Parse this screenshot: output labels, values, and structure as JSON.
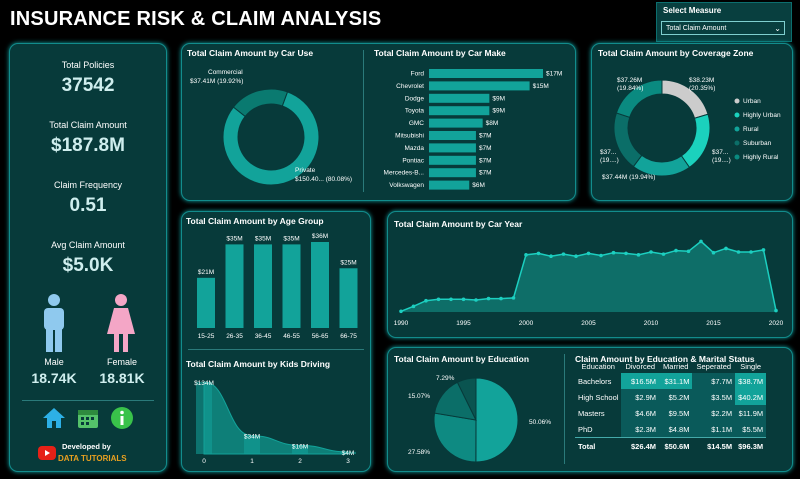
{
  "title": "INSURANCE RISK & CLAIM ANALYSIS",
  "measure": {
    "label": "Select Measure",
    "value": "Total Claim Amount"
  },
  "kpis": {
    "total_policies": {
      "label": "Total Policies",
      "value": "37542"
    },
    "total_claim": {
      "label": "Total Claim Amount",
      "value": "$187.8M"
    },
    "frequency": {
      "label": "Claim Frequency",
      "value": "0.51"
    },
    "avg_claim": {
      "label": "Avg Claim Amount",
      "value": "$5.0K"
    }
  },
  "gender": {
    "male_label": "Male",
    "male_value": "18.74K",
    "female_label": "Female",
    "female_value": "18.81K"
  },
  "developer": {
    "line1": "Developed by",
    "line2": "DATA TUTORIALS"
  },
  "colors": {
    "accent": "#12a39a",
    "panel": "#073a3a",
    "border": "#128c8c"
  },
  "car_use": {
    "title": "Total Claim Amount by Car Use",
    "commercial": "Commercial",
    "commercial_val": "$37.41M (19.92%)",
    "private": "Private",
    "private_val": "$150.40... (80.08%)"
  },
  "car_make": {
    "title": "Total Claim Amount by Car Make"
  },
  "coverage": {
    "title": "Total Claim Amount by Coverage Zone",
    "labels": [
      "$37.26M",
      "(19.84%)",
      "$38.23M",
      "(20.35%)",
      "$37...",
      "(19....)",
      "$37...",
      "(19....)",
      "$37.44M (19.94%)"
    ],
    "legend": [
      "Urban",
      "Highly Urban",
      "Rural",
      "Suburban",
      "Highly Rural"
    ]
  },
  "age": {
    "title": "Total Claim Amount by Age Group"
  },
  "kids": {
    "title": "Total Claim Amount by Kids Driving"
  },
  "year": {
    "title": "Total Claim Amount by Car Year"
  },
  "education": {
    "title": "Total Claim Amount by Education",
    "labels": [
      "7.29%",
      "15.07%",
      "27.58%",
      "50.06%"
    ]
  },
  "marital": {
    "title": "Claim Amount by Education & Marital Status",
    "headers": [
      "Education",
      "Divorced",
      "Married",
      "Seperated",
      "Single"
    ],
    "rows": [
      [
        "Bachelors",
        "$16.5M",
        "$31.1M",
        "$7.7M",
        "$38.7M"
      ],
      [
        "High School",
        "$2.9M",
        "$5.2M",
        "$3.5M",
        "$40.2M"
      ],
      [
        "Masters",
        "$4.6M",
        "$9.5M",
        "$2.2M",
        "$11.9M"
      ],
      [
        "PhD",
        "$2.3M",
        "$4.8M",
        "$1.1M",
        "$5.5M"
      ]
    ],
    "total": [
      "Total",
      "$26.4M",
      "$50.6M",
      "$14.5M",
      "$96.3M"
    ]
  },
  "chart_data": [
    {
      "type": "pie",
      "title": "Total Claim Amount by Car Use",
      "categories": [
        "Commercial",
        "Private"
      ],
      "values": [
        37.41,
        150.4
      ],
      "percent": [
        19.92,
        80.08
      ],
      "unit": "$M"
    },
    {
      "type": "bar",
      "title": "Total Claim Amount by Car Make",
      "categories": [
        "Ford",
        "Chevrolet",
        "Dodge",
        "Toyota",
        "GMC",
        "Mitsubishi",
        "Mazda",
        "Pontiac",
        "Mercedes-B...",
        "Volkswagen"
      ],
      "values": [
        17,
        15,
        9,
        9,
        8,
        7,
        7,
        7,
        7,
        6
      ],
      "labels": [
        "$17M",
        "$15M",
        "$9M",
        "$9M",
        "$8M",
        "$7M",
        "$7M",
        "$7M",
        "$7M",
        "$6M"
      ]
    },
    {
      "type": "pie",
      "title": "Total Claim Amount by Coverage Zone",
      "categories": [
        "Urban",
        "Highly Urban",
        "Rural",
        "Suburban",
        "Highly Rural"
      ],
      "values": [
        38.23,
        37.44,
        37.26,
        37.4,
        37.4
      ],
      "colors": [
        "#cccccc",
        "#1bd1bd",
        "#12a39a",
        "#0b6e68",
        "#0a8a80"
      ]
    },
    {
      "type": "bar",
      "title": "Total Claim Amount by Age Group",
      "categories": [
        "15-25",
        "26-35",
        "36-45",
        "46-55",
        "56-65",
        "66-75"
      ],
      "values": [
        21,
        35,
        35,
        35,
        36,
        25
      ],
      "labels": [
        "$21M",
        "$35M",
        "$35M",
        "$35M",
        "$36M",
        "$25M"
      ]
    },
    {
      "type": "area",
      "title": "Total Claim Amount by Kids Driving",
      "x": [
        0,
        1,
        2,
        3
      ],
      "values": [
        134,
        34,
        16,
        4
      ],
      "labels": [
        "$134M",
        "$34M",
        "$16M",
        "$4M"
      ]
    },
    {
      "type": "area",
      "title": "Total Claim Amount by Car Year",
      "x": [
        1990,
        1991,
        1992,
        1993,
        1994,
        1995,
        1996,
        1997,
        1998,
        1999,
        2000,
        2001,
        2002,
        2003,
        2004,
        2005,
        2006,
        2007,
        2008,
        2009,
        2010,
        2011,
        2012,
        2013,
        2014,
        2015,
        2016,
        2017,
        2018,
        2019,
        2020
      ],
      "values": [
        0.1,
        0.8,
        1.6,
        1.8,
        1.8,
        1.8,
        1.7,
        1.9,
        1.9,
        2.0,
        8.1,
        8.3,
        7.9,
        8.2,
        7.9,
        8.3,
        8.0,
        8.4,
        8.3,
        8.1,
        8.5,
        8.2,
        8.7,
        8.6,
        10.0,
        8.4,
        9.0,
        8.5,
        8.5,
        8.8,
        0.2
      ],
      "xticks": [
        1990,
        1995,
        2000,
        2005,
        2010,
        2015,
        2020
      ]
    },
    {
      "type": "pie",
      "title": "Total Claim Amount by Education",
      "categories": [
        "Bachelors",
        "High School",
        "Masters",
        "PhD"
      ],
      "values": [
        50.06,
        27.58,
        15.07,
        7.29
      ]
    }
  ]
}
